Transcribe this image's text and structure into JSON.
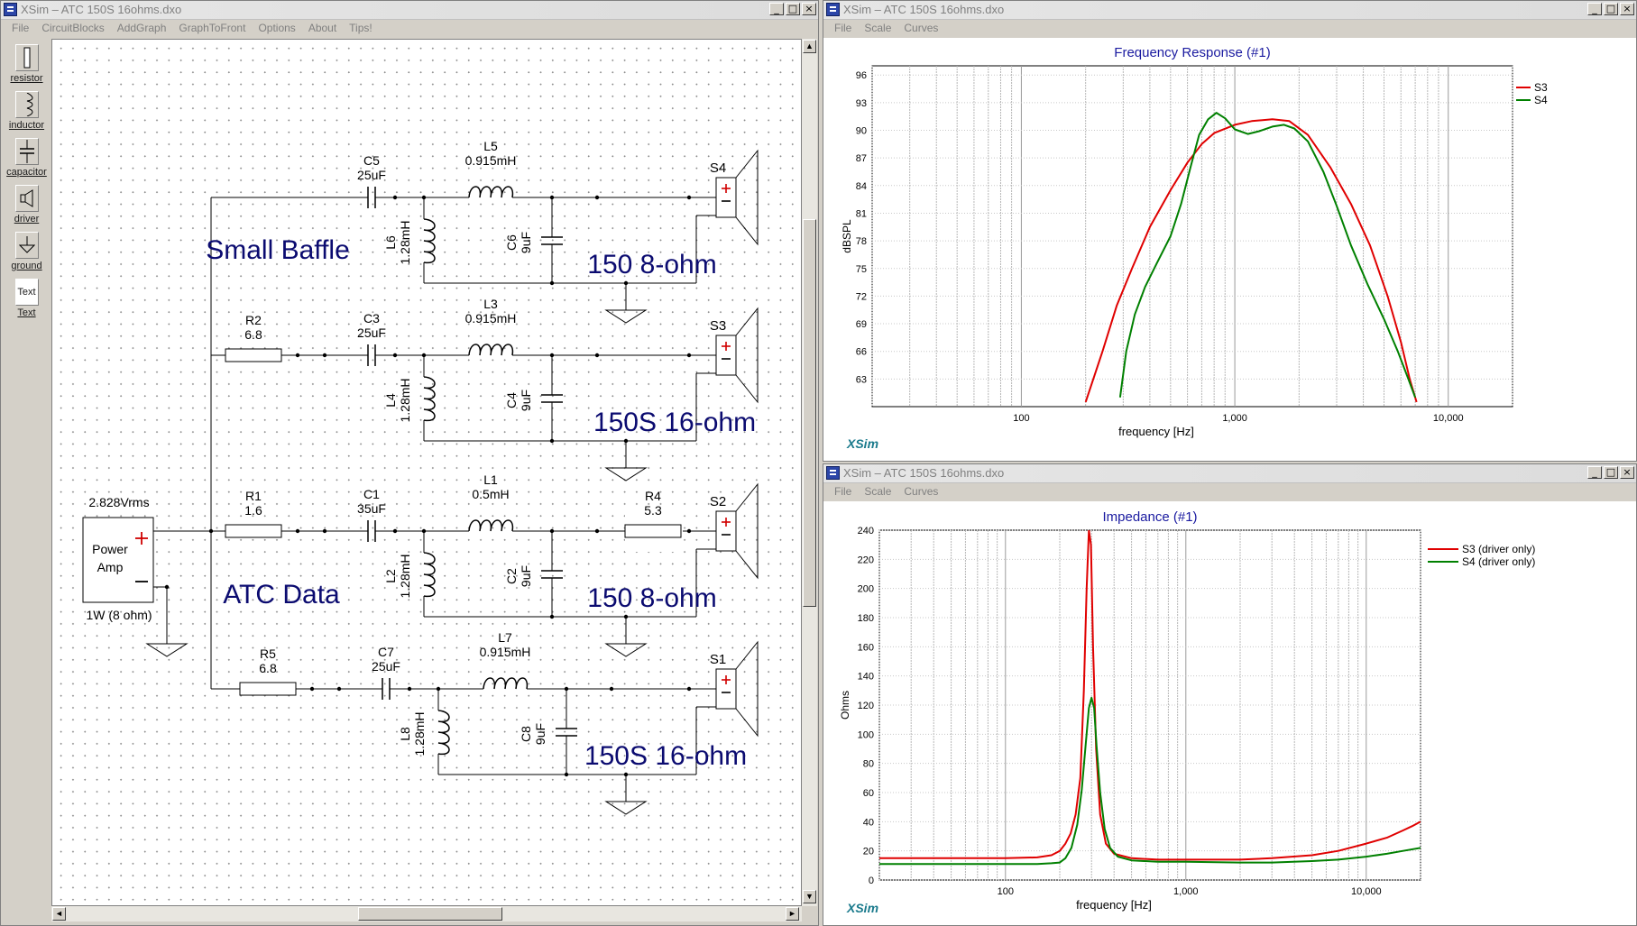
{
  "schematic_window": {
    "title": "XSim – ATC  150S 16ohms.dxo",
    "menu": [
      "File",
      "CircuitBlocks",
      "AddGraph",
      "GraphToFront",
      "Options",
      "About",
      "Tips!"
    ],
    "tools": [
      {
        "label": "resistor",
        "icon": "resistor-icon"
      },
      {
        "label": "inductor",
        "icon": "inductor-icon"
      },
      {
        "label": "capacitor",
        "icon": "capacitor-icon"
      },
      {
        "label": "driver",
        "icon": "speaker-icon"
      },
      {
        "label": "ground",
        "icon": "ground-icon"
      },
      {
        "label": "Text",
        "icon": "text-tool-icon"
      }
    ],
    "text_tool_face": "Text",
    "amp": {
      "voltage": "2.828Vrms",
      "name_line1": "Power",
      "name_line2": "Amp",
      "power": "1W (8 ohm)"
    },
    "branches": [
      {
        "series_r": null,
        "cap": {
          "name": "C5",
          "value": "25uF"
        },
        "ind": {
          "name": "L5",
          "value": "0.915mH"
        },
        "shunt_l": {
          "name": "L6",
          "value": "1.28mH"
        },
        "shunt_c": {
          "name": "C6",
          "value": "9uF"
        },
        "r_after": null,
        "driver": "S4",
        "note": "150 8-ohm"
      },
      {
        "series_r": {
          "name": "R2",
          "value": "6.8"
        },
        "cap": {
          "name": "C3",
          "value": "25uF"
        },
        "ind": {
          "name": "L3",
          "value": "0.915mH"
        },
        "shunt_l": {
          "name": "L4",
          "value": "1.28mH"
        },
        "shunt_c": {
          "name": "C4",
          "value": "9uF"
        },
        "r_after": null,
        "driver": "S3",
        "note": "150S 16-ohm"
      },
      {
        "series_r": {
          "name": "R1",
          "value": "1.6"
        },
        "cap": {
          "name": "C1",
          "value": "35uF"
        },
        "ind": {
          "name": "L1",
          "value": "0.5mH"
        },
        "shunt_l": {
          "name": "L2",
          "value": "1.28mH"
        },
        "shunt_c": {
          "name": "C2",
          "value": "9uF"
        },
        "r_after": {
          "name": "R4",
          "value": "5.3"
        },
        "driver": "S2",
        "note": "150 8-ohm"
      },
      {
        "series_r": {
          "name": "R5",
          "value": "6.8"
        },
        "cap": {
          "name": "C7",
          "value": "25uF"
        },
        "ind": {
          "name": "L7",
          "value": "0.915mH"
        },
        "shunt_l": {
          "name": "L8",
          "value": "1.28mH"
        },
        "shunt_c": {
          "name": "C8",
          "value": "9uF"
        },
        "r_after": null,
        "driver": "S1",
        "note": "150S  16-ohm"
      }
    ],
    "annotations": [
      "Small Baffle",
      "ATC  Data"
    ]
  },
  "freq_window": {
    "title": "XSim – ATC  150S 16ohms.dxo",
    "menu": [
      "File",
      "Scale",
      "Curves"
    ],
    "logo": "XSim",
    "chart_data": {
      "type": "line",
      "title": "Frequency Response (#1)",
      "xlabel": "frequency [Hz]",
      "ylabel": "dBSPL",
      "xscale": "log",
      "xlim": [
        20,
        20000
      ],
      "ylim": [
        60,
        97
      ],
      "yticks": [
        63,
        66,
        69,
        72,
        75,
        78,
        81,
        84,
        87,
        90,
        93,
        96
      ],
      "xtick_labels": [
        {
          "x": 100,
          "label": "100"
        },
        {
          "x": 1000,
          "label": "1,000"
        },
        {
          "x": 10000,
          "label": "10,000"
        }
      ],
      "grid": true,
      "legend_position": "top-right",
      "series": [
        {
          "name": "S3",
          "color": "#e00000",
          "x": [
            200,
            240,
            280,
            330,
            400,
            500,
            600,
            700,
            800,
            1000,
            1200,
            1500,
            1800,
            2200,
            2800,
            3500,
            4300,
            5200,
            6000,
            6600,
            7100
          ],
          "y": [
            60.5,
            66,
            71,
            75,
            79.5,
            83.5,
            86.5,
            88.5,
            89.7,
            90.6,
            91.0,
            91.2,
            91.0,
            89.5,
            86,
            82,
            77.5,
            72,
            67,
            63,
            60.5
          ]
        },
        {
          "name": "S4",
          "color": "#008000",
          "x": [
            290,
            310,
            340,
            380,
            430,
            500,
            560,
            620,
            680,
            750,
            820,
            900,
            1000,
            1150,
            1300,
            1500,
            1700,
            1900,
            2200,
            2600,
            3000,
            3500,
            4200,
            5000,
            5800,
            6500,
            7000
          ],
          "y": [
            61,
            66,
            70,
            73,
            75.5,
            78.5,
            82,
            86,
            89.5,
            91.2,
            91.9,
            91.3,
            90.1,
            89.6,
            89.9,
            90.4,
            90.6,
            90.2,
            88.8,
            85.5,
            81.8,
            77.5,
            73.2,
            69.5,
            66,
            63,
            61
          ]
        }
      ]
    }
  },
  "imp_window": {
    "title": "XSim – ATC  150S 16ohms.dxo",
    "menu": [
      "File",
      "Scale",
      "Curves"
    ],
    "logo": "XSim",
    "chart_data": {
      "type": "line",
      "title": "Impedance (#1)",
      "xlabel": "frequency [Hz]",
      "ylabel": "Ohms",
      "xscale": "log",
      "xlim": [
        20,
        20000
      ],
      "ylim": [
        0,
        240
      ],
      "yticks": [
        0,
        20,
        40,
        60,
        80,
        100,
        120,
        140,
        160,
        180,
        200,
        220,
        240
      ],
      "xtick_labels": [
        {
          "x": 100,
          "label": "100"
        },
        {
          "x": 1000,
          "label": "1,000"
        },
        {
          "x": 10000,
          "label": "10,000"
        }
      ],
      "grid": true,
      "legend_position": "top-right",
      "series": [
        {
          "name": "S3 (driver only)",
          "color": "#e00000",
          "x": [
            20,
            50,
            100,
            150,
            180,
            200,
            215,
            230,
            245,
            260,
            272,
            282,
            290,
            298,
            306,
            318,
            335,
            360,
            400,
            500,
            700,
            1000,
            2000,
            3000,
            5000,
            7000,
            10000,
            13000,
            16000,
            18000,
            20000
          ],
          "y": [
            15,
            15,
            15,
            15.5,
            17,
            20,
            25,
            32,
            45,
            70,
            130,
            200,
            240,
            230,
            160,
            90,
            45,
            25,
            18,
            15,
            14,
            14,
            14,
            15,
            17,
            20,
            25,
            29,
            34,
            37,
            40
          ]
        },
        {
          "name": "S4 (driver only)",
          "color": "#008000",
          "x": [
            20,
            50,
            100,
            150,
            180,
            200,
            215,
            232,
            250,
            265,
            278,
            290,
            300,
            310,
            320,
            335,
            355,
            380,
            420,
            500,
            700,
            1000,
            2000,
            3000,
            5000,
            7000,
            10000,
            13000,
            16000,
            20000
          ],
          "y": [
            11,
            11,
            11,
            11,
            11.5,
            12,
            15,
            22,
            38,
            62,
            92,
            118,
            125,
            118,
            92,
            60,
            35,
            22,
            16,
            13.5,
            12.5,
            12.5,
            12,
            12,
            13,
            14,
            16,
            18,
            20,
            22
          ]
        }
      ]
    }
  }
}
